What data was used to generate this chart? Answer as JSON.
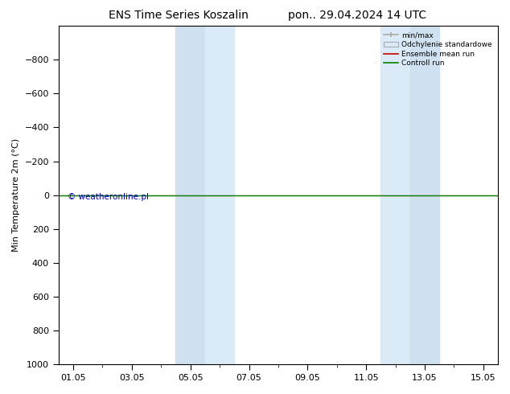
{
  "title_left": "ENS Time Series Koszalin",
  "title_right": "pon.. 29.04.2024 14 UTC",
  "ylabel": "Min Temperature 2m (°C)",
  "ylim_bottom": 1000,
  "ylim_top": -1000,
  "yticks": [
    -800,
    -600,
    -400,
    -200,
    0,
    200,
    400,
    600,
    800,
    1000
  ],
  "xtick_labels": [
    "01.05",
    "03.05",
    "05.05",
    "07.05",
    "09.05",
    "11.05",
    "13.05",
    "15.05"
  ],
  "xtick_positions": [
    0,
    2,
    4,
    6,
    8,
    10,
    12,
    14
  ],
  "xlim": [
    -0.5,
    14.5
  ],
  "shaded_regions": [
    [
      3.5,
      4.5
    ],
    [
      4.5,
      5.5
    ],
    [
      10.5,
      11.5
    ],
    [
      11.5,
      12.5
    ]
  ],
  "shaded_colors": [
    "#cfe0f0",
    "#daeaf7",
    "#daeaf7",
    "#cfe0f0"
  ],
  "control_run_y": 0,
  "ensemble_mean_y": 0,
  "legend_labels": [
    "min/max",
    "Odchylenie standardowe",
    "Ensemble mean run",
    "Controll run"
  ],
  "legend_colors_line": [
    "#aaaaaa",
    "#cccccc",
    "#cc0000",
    "#008000"
  ],
  "background_color": "#ffffff",
  "watermark": "© weatheronline.pl",
  "watermark_color": "#0000bb",
  "title_fontsize": 10,
  "axis_fontsize": 8,
  "ylabel_fontsize": 8
}
